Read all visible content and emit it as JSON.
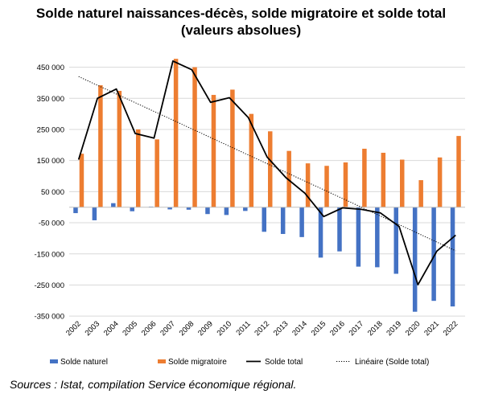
{
  "title_line1": "Solde naturel naissances-décès, solde migratoire et solde total",
  "title_line2": "(valeurs absolues)",
  "source": "Sources : Istat, compilation Service économique régional.",
  "chart_data": {
    "type": "bar",
    "categories": [
      "2002",
      "2003",
      "2004",
      "2005",
      "2006",
      "2007",
      "2008",
      "2009",
      "2010",
      "2011",
      "2012",
      "2013",
      "2014",
      "2015",
      "2016",
      "2017",
      "2018",
      "2019",
      "2020",
      "2021",
      "2022"
    ],
    "series": [
      {
        "name": "Solde naturel",
        "type": "bar",
        "color": "#4472c4",
        "values": [
          -19000,
          -42000,
          13000,
          -13000,
          2000,
          -7000,
          -8000,
          -22000,
          -25000,
          -12000,
          -79000,
          -86000,
          -96000,
          -162000,
          -142000,
          -191000,
          -193000,
          -214000,
          -336000,
          -301000,
          -319000
        ]
      },
      {
        "name": "Solde migratoire",
        "type": "bar",
        "color": "#ed7d31",
        "values": [
          172000,
          392000,
          374000,
          250000,
          218000,
          477000,
          450000,
          361000,
          378000,
          300000,
          244000,
          181000,
          141000,
          133000,
          144000,
          188000,
          175000,
          153000,
          87000,
          160000,
          229000
        ]
      },
      {
        "name": "Solde total",
        "type": "line",
        "color": "#000000",
        "values": [
          153000,
          350000,
          380000,
          237000,
          222000,
          470000,
          442000,
          337000,
          352000,
          288000,
          161000,
          95000,
          45000,
          -30000,
          -2000,
          -7000,
          -18000,
          -62000,
          -249000,
          -141000,
          -90000
        ]
      },
      {
        "name": "Linéaire (Solde total)",
        "type": "trendline",
        "color": "#000000",
        "start": 420000,
        "end": -140000
      }
    ],
    "yticks": [
      450000,
      350000,
      250000,
      150000,
      50000,
      -50000,
      -150000,
      -250000,
      -350000
    ],
    "ytick_labels": [
      "450 000",
      "350 000",
      "250 000",
      "150 000",
      "50 000",
      "-50 000",
      "-150 000",
      "-250 000",
      "-350 000"
    ],
    "ylim": [
      -360000,
      480000
    ],
    "legend": "bottom",
    "grid": true
  }
}
